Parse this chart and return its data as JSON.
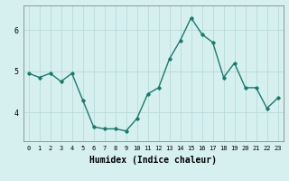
{
  "x": [
    0,
    1,
    2,
    3,
    4,
    5,
    6,
    7,
    8,
    9,
    10,
    11,
    12,
    13,
    14,
    15,
    16,
    17,
    18,
    19,
    20,
    21,
    22,
    23
  ],
  "y": [
    4.95,
    4.85,
    4.95,
    4.75,
    4.95,
    4.3,
    3.65,
    3.6,
    3.6,
    3.55,
    3.85,
    4.45,
    4.6,
    5.3,
    5.75,
    6.3,
    5.9,
    5.7,
    4.85,
    5.2,
    4.6,
    4.6,
    4.1,
    4.35
  ],
  "xlabel": "Humidex (Indice chaleur)",
  "yticks": [
    4,
    5,
    6
  ],
  "xticks": [
    0,
    1,
    2,
    3,
    4,
    5,
    6,
    7,
    8,
    9,
    10,
    11,
    12,
    13,
    14,
    15,
    16,
    17,
    18,
    19,
    20,
    21,
    22,
    23
  ],
  "ylim": [
    3.3,
    6.6
  ],
  "xlim": [
    -0.5,
    23.5
  ],
  "line_color": "#1a7a6e",
  "marker_color": "#1a7a6e",
  "bg_color": "#d6f0f0",
  "grid_color": "#b8dada",
  "axis_color": "#888888",
  "marker": "D",
  "markersize": 1.8,
  "linewidth": 1.0,
  "xlabel_fontsize": 7,
  "tick_fontsize_x": 5,
  "tick_fontsize_y": 6
}
